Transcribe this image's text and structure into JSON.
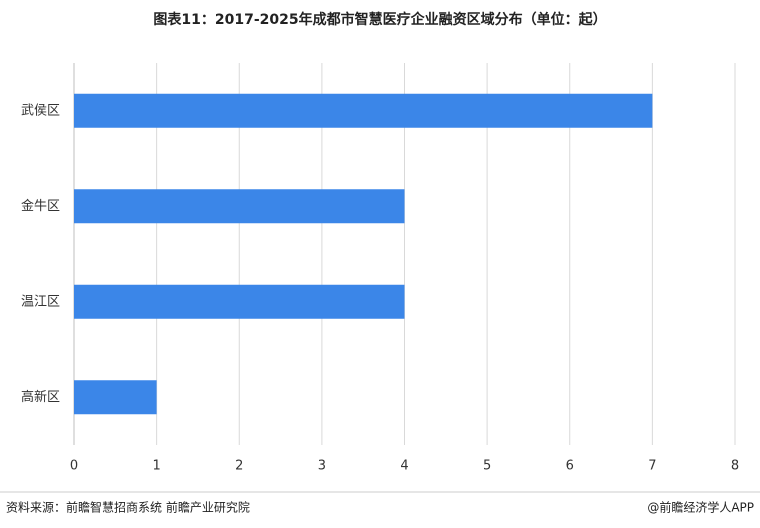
{
  "chart_data": {
    "type": "barh",
    "title": "图表11：2017-2025年成都市智慧医疗企业融资区域分布（单位：起）",
    "categories": [
      "武侯区",
      "金牛区",
      "温江区",
      "高新区"
    ],
    "values": [
      7,
      4,
      4,
      1
    ],
    "color": "#3b86e8",
    "xlim": [
      0,
      8
    ],
    "xticks": [
      0,
      1,
      2,
      3,
      4,
      5,
      6,
      7,
      8
    ],
    "grid": true,
    "source": "资料来源：前瞻智慧招商系统  前瞻产业研究院",
    "credit": "@前瞻经济学人APP"
  }
}
